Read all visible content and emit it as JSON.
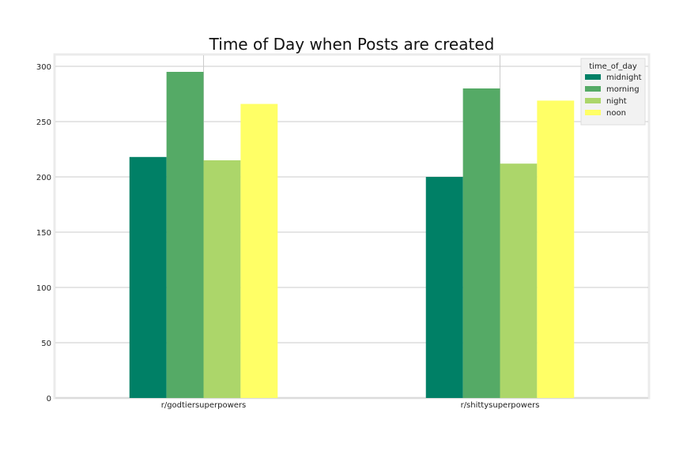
{
  "chart_data": {
    "type": "bar",
    "title": "Time of Day when Posts are created",
    "xlabel": "",
    "ylabel": "",
    "categories": [
      "r/godtiersuperpowers",
      "r/shittysuperpowers"
    ],
    "series": [
      {
        "name": "midnight",
        "values": [
          218,
          200
        ],
        "color": "#008066"
      },
      {
        "name": "morning",
        "values": [
          295,
          280
        ],
        "color": "#55aa66"
      },
      {
        "name": "night",
        "values": [
          215,
          212
        ],
        "color": "#acd66a"
      },
      {
        "name": "noon",
        "values": [
          266,
          269
        ],
        "color": "#ffff66"
      }
    ],
    "ylim": [
      0,
      310
    ],
    "yticks": [
      0,
      50,
      100,
      150,
      200,
      250,
      300
    ],
    "grid": true,
    "legend": {
      "title": "time_of_day",
      "placement": "top-right"
    }
  }
}
